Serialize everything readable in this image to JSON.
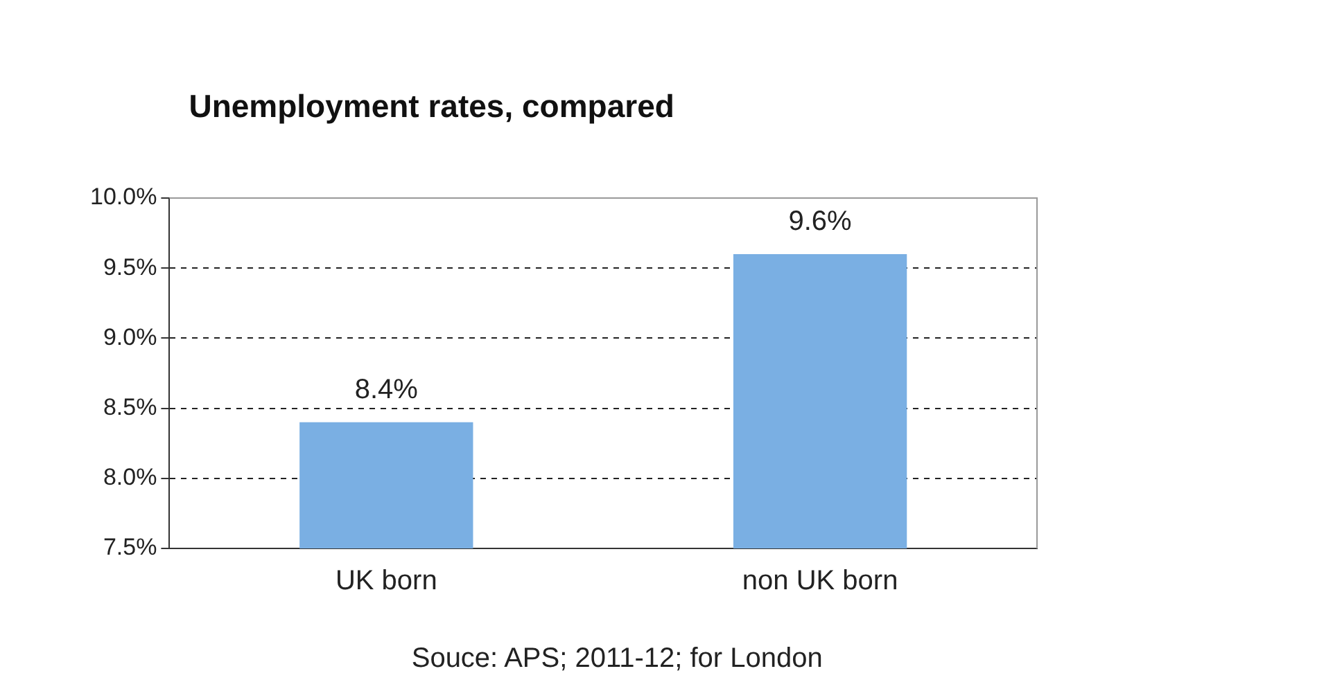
{
  "chart_data": {
    "type": "bar",
    "title": "Unemployment rates, compared",
    "categories": [
      "UK born",
      "non UK born"
    ],
    "values": [
      8.4,
      9.6
    ],
    "value_labels": [
      "8.4%",
      "9.6%"
    ],
    "color": "#7aafe3",
    "ylim": [
      7.5,
      10
    ],
    "yticks": [
      {
        "value": 7.5,
        "label": "7.5%"
      },
      {
        "value": 8,
        "label": "8.0%"
      },
      {
        "value": 8.5,
        "label": "8.5%"
      },
      {
        "value": 9,
        "label": "9.0%"
      },
      {
        "value": 9.5,
        "label": "9.5%"
      },
      {
        "value": 10,
        "label": "10.0%"
      }
    ],
    "grid": "y",
    "legend": false,
    "annotations": [
      "Souce: APS; 2011-12; for London"
    ]
  }
}
